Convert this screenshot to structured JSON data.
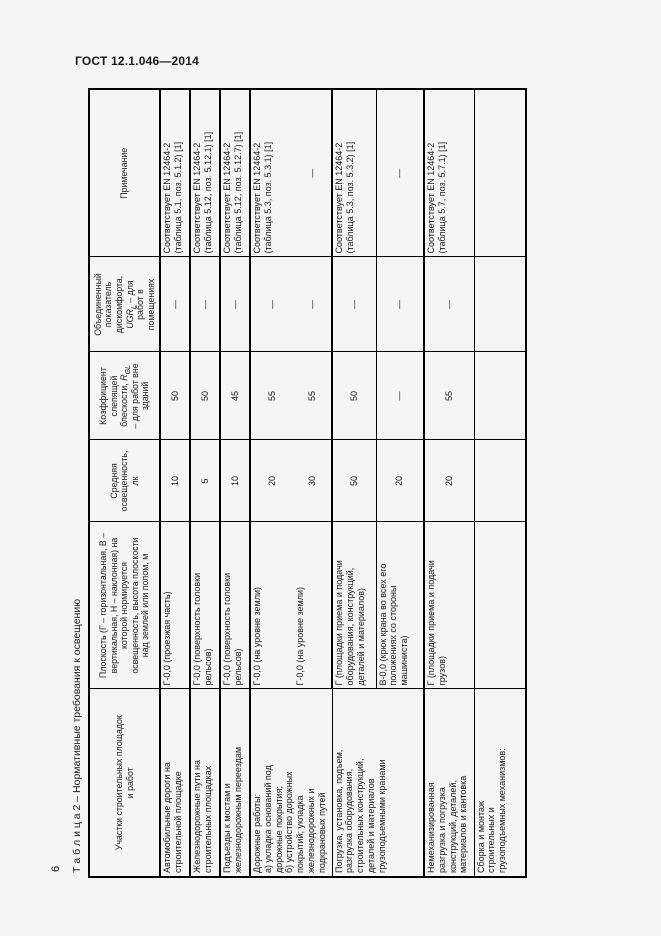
{
  "page": {
    "doc_header": "ГОСТ 12.1.046—2014",
    "page_number": "6"
  },
  "table": {
    "caption": "Т а б л и ц а  2 – Нормативные требования к освещению",
    "headers": {
      "sites": "Участки строительных площадок\nи работ",
      "plane": "Плоскость (Г – горизонтальная, В –\nвертикальная, Н – наклонная) на\nкоторой нормируется\nосвещенность, высота плоскости\nнад землей или полом, м",
      "illuminance": "Средняя\nосвещенность,\nлк",
      "glare_rich": [
        {
          "t": "Коэффициент\nслепящей\nблескости, "
        },
        {
          "t": "R",
          "s": "i"
        },
        {
          "t": "GL",
          "s": "isub"
        },
        {
          "t": "\n– для работ вне\nзданий"
        }
      ],
      "ugr_rich": [
        {
          "t": "Объединенный\nпоказатель\nдискомфорта,\n"
        },
        {
          "t": "UGR",
          "s": "i"
        },
        {
          "t": "L",
          "s": "isub"
        },
        {
          "t": " – для\nработ в\nпомещениях"
        }
      ],
      "note": "Примечание"
    },
    "rows": [
      {
        "site": "Автомобильные дороги на\nстроительной площадке",
        "plane": "Г-0,0 (проезжая часть)",
        "lux": "10",
        "rgl": "50",
        "ugr": "—",
        "note": "Соответствует EN 12464-2\n(таблица 5.1, поз. 5.1.2) [1]"
      },
      {
        "site": "Железнодорожные пути на\nстроительных площадках",
        "plane": "Г-0,0 (поверхность головки\nрельсов)",
        "lux": "5",
        "rgl": "50",
        "ugr": "—",
        "note": "Соответствует EN 12464-2\n(таблица 5.12, поз. 5.12.1) [1]"
      },
      {
        "site": "Подъезды к мостам и\nжелезнодорожным переездам",
        "plane": "Г-0,0 (поверхность головки\nрельсов)",
        "lux": "10",
        "rgl": "45",
        "ugr": "—",
        "note": "Соответствует EN 12464-2\n(таблица 5.12, поз. 5.12.7) [1]"
      },
      {
        "site": "Дорожные работы:\nа) укладка оснований под\nдорожные покрытия;\nб) устройство дорожных\nпокрытий; укладка\nжелезнодорожных и\nподкрановых путей",
        "plane": "Г-0,0 (на уровне земли)",
        "lux": "20",
        "rgl": "55",
        "ugr": "—",
        "note": "Соответствует EN 12464-2\n(таблица 5.3, поз. 5.3.1) [1]"
      },
      {
        "plane": "Г-0,0 (на уровне земли)",
        "lux": "30",
        "rgl": "55",
        "ugr": "—",
        "note": "—"
      },
      {
        "site": "Погрузка, установка, подъем,\nразгрузка оборудования,\nстроительных конструкций,\nдеталей и материалов\nгрузоподъемными кранами",
        "plane": "Г (площадки приема и подачи\nоборудования, конструкций,\nдеталей и материалов)",
        "lux": "50",
        "rgl": "50",
        "ugr": "—",
        "note": "Соответствует EN 12464-2\n(таблица 5.3, поз. 5.3.2) [1]"
      },
      {
        "plane": "В-0,0 (крюк крана во всех его\nположениях со стороны\nмашиниста)",
        "lux": "20",
        "rgl": "—",
        "ugr": "—",
        "note": "—"
      },
      {
        "site": "Немеханизированная\nразгрузка и погрузка\nконструкций, деталей,\nматериалов и кантовка",
        "plane": "Г (площадки приема и подачи\nгрузов)",
        "lux": "20",
        "rgl": "55",
        "ugr": "—",
        "note": "Соответствует EN 12464-2\n(таблица 5.7, поз. 5.7.1) [1]"
      },
      {
        "site": "Сборка и монтаж\nстроительных и\nгрузоподъемных механизмов:",
        "plane": "",
        "lux": "",
        "rgl": "",
        "ugr": "",
        "note": ""
      }
    ]
  }
}
